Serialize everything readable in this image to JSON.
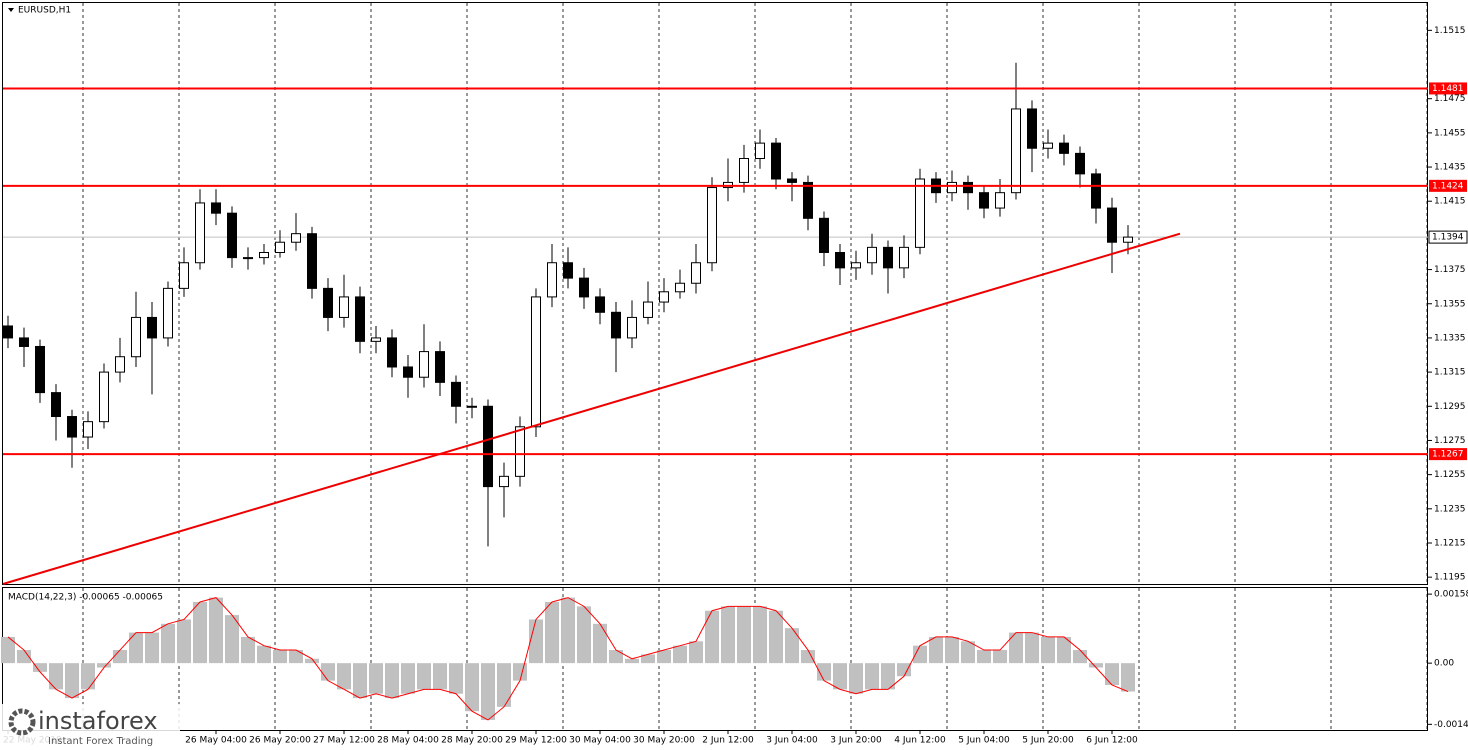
{
  "chart_data": [
    {
      "type": "candlestick",
      "title": "EURUSD,H1",
      "categories": [
        "22 May 2019",
        null,
        null,
        null,
        null,
        null,
        null,
        null,
        null,
        null,
        null,
        null,
        null,
        "26 May 04:00",
        null,
        null,
        null,
        "26 May 20:00",
        null,
        null,
        null,
        "27 May 12:00",
        null,
        null,
        null,
        "28 May 04:00",
        null,
        null,
        null,
        "28 May 20:00",
        null,
        null,
        null,
        "29 May 12:00",
        null,
        null,
        null,
        "30 May 04:00",
        null,
        null,
        null,
        "30 May 20:00",
        null,
        null,
        null,
        "2 Jun 12:00",
        null,
        null,
        null,
        "3 Jun 04:00",
        null,
        null,
        null,
        "3 Jun 20:00",
        null,
        null,
        null,
        "4 Jun 12:00",
        null,
        null,
        null,
        "5 Jun 04:00",
        null,
        null,
        null,
        "5 Jun 20:00",
        null,
        null,
        null,
        "6 Jun 12:00",
        null
      ],
      "open": [
        1.1342,
        1.1335,
        1.133,
        1.1303,
        1.1289,
        1.1277,
        1.1286,
        1.1315,
        1.1324,
        1.1347,
        1.1335,
        1.1364,
        1.1379,
        1.1414,
        1.1408,
        1.1382,
        1.1382,
        1.1385,
        1.1391,
        1.1396,
        1.1364,
        1.1347,
        1.1359,
        1.1333,
        1.1335,
        1.1318,
        1.1312,
        1.1327,
        1.1309,
        1.1295,
        1.1295,
        1.1248,
        1.1254,
        1.1283,
        1.1359,
        1.1379,
        1.137,
        1.1359,
        1.135,
        1.1335,
        1.1347,
        1.1356,
        1.1362,
        1.1367,
        1.1379,
        1.1423,
        1.1426,
        1.144,
        1.1449,
        1.1428,
        1.1426,
        1.1405,
        1.1385,
        1.1376,
        1.1379,
        1.1388,
        1.1376,
        1.1388,
        1.1428,
        1.142,
        1.1426,
        1.142,
        1.1411,
        1.142,
        1.1469,
        1.1446,
        1.1449,
        1.1443,
        1.1431,
        1.1411,
        1.1391
      ],
      "high": [
        1.1348,
        1.1341,
        1.1334,
        1.1308,
        1.1293,
        1.1292,
        1.132,
        1.1335,
        1.1362,
        1.1356,
        1.1368,
        1.1388,
        1.1422,
        1.1422,
        1.1412,
        1.1388,
        1.139,
        1.1398,
        1.1408,
        1.14,
        1.137,
        1.1372,
        1.1365,
        1.1342,
        1.134,
        1.1325,
        1.1343,
        1.1333,
        1.1313,
        1.13,
        1.1299,
        1.1262,
        1.1289,
        1.1364,
        1.139,
        1.1388,
        1.1376,
        1.1364,
        1.1356,
        1.1357,
        1.1368,
        1.137,
        1.1375,
        1.139,
        1.1429,
        1.144,
        1.1448,
        1.1457,
        1.1452,
        1.1432,
        1.143,
        1.1409,
        1.139,
        1.1386,
        1.1396,
        1.1392,
        1.1395,
        1.1434,
        1.1432,
        1.1433,
        1.143,
        1.1424,
        1.1428,
        1.1496,
        1.1474,
        1.1457,
        1.1454,
        1.1447,
        1.1434,
        1.1417,
        1.1401
      ],
      "low": [
        1.1329,
        1.1318,
        1.1297,
        1.1275,
        1.1259,
        1.127,
        1.1282,
        1.1309,
        1.1318,
        1.1302,
        1.133,
        1.1359,
        1.1375,
        1.1401,
        1.1376,
        1.1375,
        1.1378,
        1.1382,
        1.1386,
        1.1358,
        1.1339,
        1.1341,
        1.1326,
        1.1326,
        1.1312,
        1.13,
        1.1306,
        1.1301,
        1.1285,
        1.1288,
        1.1213,
        1.123,
        1.1248,
        1.1277,
        1.1353,
        1.1364,
        1.1352,
        1.1343,
        1.1315,
        1.1329,
        1.1343,
        1.135,
        1.1358,
        1.1361,
        1.1374,
        1.1415,
        1.142,
        1.1434,
        1.1422,
        1.1415,
        1.1398,
        1.1377,
        1.1366,
        1.1369,
        1.1372,
        1.1361,
        1.137,
        1.1384,
        1.1414,
        1.1415,
        1.141,
        1.1405,
        1.1406,
        1.1416,
        1.1432,
        1.144,
        1.1436,
        1.1423,
        1.1402,
        1.1373,
        1.1384
      ],
      "close": [
        1.1335,
        1.133,
        1.1303,
        1.1289,
        1.1277,
        1.1286,
        1.1315,
        1.1324,
        1.1347,
        1.1335,
        1.1364,
        1.1379,
        1.1414,
        1.1408,
        1.1382,
        1.1382,
        1.1385,
        1.1391,
        1.1396,
        1.1364,
        1.1347,
        1.1359,
        1.1333,
        1.1335,
        1.1318,
        1.1312,
        1.1327,
        1.1309,
        1.1295,
        1.1295,
        1.1248,
        1.1254,
        1.1283,
        1.1359,
        1.1379,
        1.137,
        1.1359,
        1.135,
        1.1335,
        1.1347,
        1.1356,
        1.1362,
        1.1367,
        1.1379,
        1.1423,
        1.1426,
        1.144,
        1.1449,
        1.1428,
        1.1426,
        1.1405,
        1.1385,
        1.1376,
        1.1379,
        1.1388,
        1.1376,
        1.1388,
        1.1428,
        1.142,
        1.1426,
        1.142,
        1.1411,
        1.142,
        1.1469,
        1.1446,
        1.1449,
        1.1443,
        1.1431,
        1.1411,
        1.1391,
        1.1394
      ],
      "ylim": [
        1.1191,
        1.1531
      ],
      "yticks": [
        1.1515,
        1.1475,
        1.1455,
        1.1435,
        1.1415,
        1.1375,
        1.1355,
        1.1335,
        1.1315,
        1.1295,
        1.1275,
        1.1255,
        1.1235,
        1.1215,
        1.1195
      ],
      "levels": [
        1.1481,
        1.1424,
        1.1267
      ],
      "level_color": "#ff0000",
      "current_price": 1.1394,
      "trendline": {
        "start": 1.1191,
        "end": 1.1396
      }
    },
    {
      "type": "macd",
      "title": "MACD(14,22,3) -0.00065 -0.00065",
      "values": [
        0.0006,
        0.0003,
        -0.0002,
        -0.0006,
        -0.0008,
        -0.0006,
        -0.0001,
        0.0003,
        0.0007,
        0.0007,
        0.0009,
        0.001,
        0.0014,
        0.0015,
        0.0011,
        0.0006,
        0.0004,
        0.0003,
        0.0003,
        0.0001,
        -0.0004,
        -0.0006,
        -0.0008,
        -0.0007,
        -0.0008,
        -0.0007,
        -0.0006,
        -0.0006,
        -0.0007,
        -0.0011,
        -0.0013,
        -0.001,
        -0.0004,
        0.001,
        0.0014,
        0.0015,
        0.0013,
        0.0009,
        0.0003,
        0.0001,
        0.0002,
        0.0003,
        0.0004,
        0.0005,
        0.0012,
        0.0013,
        0.0013,
        0.0013,
        0.0012,
        0.0008,
        0.0003,
        -0.0004,
        -0.0006,
        -0.0007,
        -0.0006,
        -0.0006,
        -0.0003,
        0.0004,
        0.0006,
        0.0006,
        0.0005,
        0.0003,
        0.0003,
        0.0007,
        0.0007,
        0.0006,
        0.0006,
        0.0003,
        -0.0001,
        -0.0005,
        -0.00065
      ],
      "signal": [
        0.0006,
        0.0003,
        -0.0002,
        -0.0006,
        -0.0008,
        -0.0006,
        -0.0001,
        0.0003,
        0.0007,
        0.0007,
        0.0009,
        0.001,
        0.0014,
        0.0015,
        0.0011,
        0.0006,
        0.0004,
        0.0003,
        0.0003,
        0.0001,
        -0.0004,
        -0.0006,
        -0.0008,
        -0.0007,
        -0.0008,
        -0.0007,
        -0.0006,
        -0.0006,
        -0.0007,
        -0.0011,
        -0.0013,
        -0.001,
        -0.0004,
        0.001,
        0.0014,
        0.0015,
        0.0013,
        0.0009,
        0.0003,
        0.0001,
        0.0002,
        0.0003,
        0.0004,
        0.0005,
        0.0012,
        0.0013,
        0.0013,
        0.0013,
        0.0012,
        0.0008,
        0.0003,
        -0.0004,
        -0.0006,
        -0.0007,
        -0.0006,
        -0.0006,
        -0.0003,
        0.0004,
        0.0006,
        0.0006,
        0.0005,
        0.0003,
        0.0003,
        0.0007,
        0.0007,
        0.0006,
        0.0006,
        0.0003,
        -0.0001,
        -0.0005,
        -0.00065
      ],
      "color": "#c0c0c0",
      "signal_color": "#ff0000",
      "ylim": [
        -0.00153,
        0.00172
      ],
      "yticks": [
        0.00158,
        {
          "value": 0,
          "label": "0.00"
        },
        -0.0014
      ]
    }
  ],
  "logo": {
    "name": "instaforex",
    "tagline": "Instant Forex Trading"
  }
}
